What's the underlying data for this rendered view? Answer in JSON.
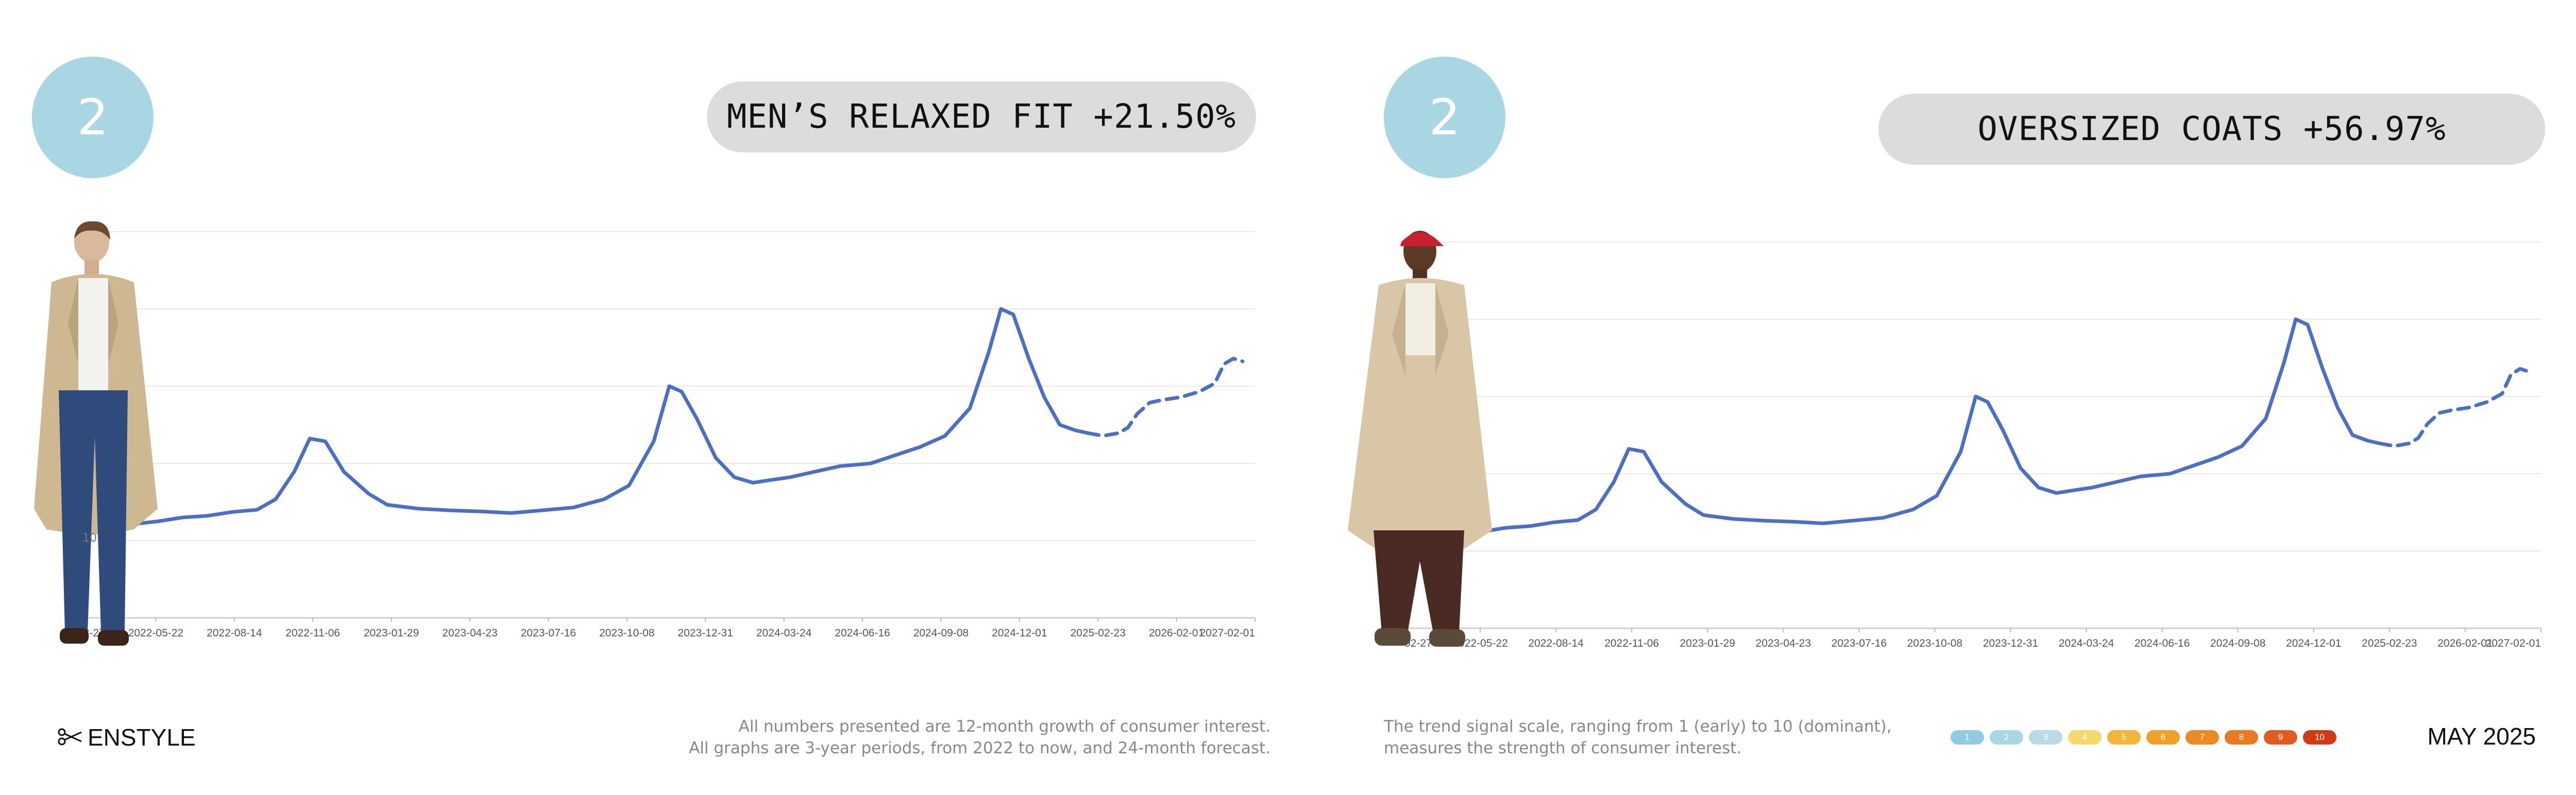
{
  "panels": [
    {
      "rank": "2",
      "title": "MEN’S RELAXED FIT +21.50%",
      "overlay_tick": "10"
    },
    {
      "rank": "2",
      "title": "OVERSIZED COATS +56.97%"
    }
  ],
  "footer": {
    "brand": "ENSTYLE",
    "brand_icon": "scissors-icon",
    "note_line1": "All numbers presented are 12-month growth of consumer interest.",
    "note_line2": "All graphs are 3-year periods, from 2022 to now, and 24-month forecast.",
    "scale_line1": "The trend signal scale, ranging from 1 (early) to 10 (dominant),",
    "scale_line2": "measures the strength of consumer interest.",
    "date": "MAY 2025"
  },
  "scale": [
    {
      "label": "1",
      "color": "#8fcbe3"
    },
    {
      "label": "2",
      "color": "#a9d6e3"
    },
    {
      "label": "3",
      "color": "#b9dbe6"
    },
    {
      "label": "4",
      "color": "#f6d96b"
    },
    {
      "label": "5",
      "color": "#f3b53a"
    },
    {
      "label": "6",
      "color": "#f0a12a"
    },
    {
      "label": "7",
      "color": "#ec8a24"
    },
    {
      "label": "8",
      "color": "#ea7a22"
    },
    {
      "label": "9",
      "color": "#e35a1e"
    },
    {
      "label": "10",
      "color": "#d23a14"
    }
  ],
  "colors": {
    "line": "#4a6fc4",
    "badge": "#a9d6e3",
    "title_bg": "#dcdcdc",
    "grid": "#e8e8e8"
  },
  "chart_data": [
    {
      "type": "line",
      "title": "MEN’S RELAXED FIT +21.50%",
      "xlabel": "",
      "ylabel": "",
      "grid": true,
      "x_ticks": [
        "2022-02-27",
        "2022-05-22",
        "2022-08-14",
        "2022-11-06",
        "2023-01-29",
        "2023-04-23",
        "2023-07-16",
        "2023-10-08",
        "2023-12-31",
        "2024-03-24",
        "2024-06-16",
        "2024-09-08",
        "2024-12-01",
        "2025-02-23",
        "2026-02-01",
        "2027-02-01"
      ],
      "series": [
        {
          "style": "solid",
          "values": [
            [
              0,
              40
            ],
            [
              0.25,
              39
            ],
            [
              0.55,
              36.5
            ],
            [
              0.9,
              37
            ],
            [
              1.3,
              37.5
            ],
            [
              1.7,
              38.2
            ],
            [
              2.1,
              38.5
            ],
            [
              2.5,
              39.2
            ],
            [
              2.9,
              39.6
            ],
            [
              3.2,
              41.5
            ],
            [
              3.5,
              46.5
            ],
            [
              3.75,
              52.5
            ],
            [
              4.0,
              52
            ],
            [
              4.3,
              46.5
            ],
            [
              4.7,
              42.5
            ],
            [
              5.0,
              40.5
            ],
            [
              5.5,
              39.8
            ],
            [
              6.0,
              39.5
            ],
            [
              6.5,
              39.3
            ],
            [
              7.0,
              39
            ],
            [
              7.5,
              39.5
            ],
            [
              8.0,
              40
            ],
            [
              8.5,
              41.5
            ],
            [
              8.9,
              44
            ],
            [
              9.3,
              52
            ],
            [
              9.55,
              62
            ],
            [
              9.75,
              61
            ],
            [
              10.0,
              56
            ],
            [
              10.3,
              49
            ],
            [
              10.6,
              45.5
            ],
            [
              10.9,
              44.5
            ],
            [
              11.2,
              45
            ],
            [
              11.5,
              45.5
            ],
            [
              11.9,
              46.5
            ],
            [
              12.3,
              47.5
            ],
            [
              12.8,
              48
            ],
            [
              13.2,
              49.5
            ],
            [
              13.6,
              51
            ],
            [
              14.0,
              53
            ],
            [
              14.4,
              58
            ],
            [
              14.7,
              68
            ],
            [
              14.9,
              76
            ],
            [
              15.1,
              75
            ],
            [
              15.35,
              67
            ],
            [
              15.6,
              60
            ],
            [
              15.85,
              55
            ],
            [
              16.1,
              54
            ],
            [
              16.3,
              53.5
            ]
          ]
        },
        {
          "style": "dashed",
          "values": [
            [
              16.3,
              53.5
            ],
            [
              16.55,
              53
            ],
            [
              16.8,
              53.5
            ],
            [
              16.95,
              54.5
            ],
            [
              17.1,
              57
            ],
            [
              17.3,
              59
            ],
            [
              17.5,
              59.5
            ],
            [
              17.8,
              60
            ],
            [
              18.1,
              61
            ],
            [
              18.35,
              62.5
            ],
            [
              18.5,
              66
            ],
            [
              18.65,
              67
            ],
            [
              18.8,
              66.5
            ]
          ]
        }
      ],
      "xlim": [
        0,
        19
      ],
      "ylim": [
        20,
        90
      ]
    },
    {
      "type": "line",
      "title": "OVERSIZED COATS +56.97%",
      "xlabel": "",
      "ylabel": "",
      "grid": true,
      "x_ticks": [
        "2022-02-27",
        "2022-05-22",
        "2022-08-14",
        "2022-11-06",
        "2023-01-29",
        "2023-04-23",
        "2023-07-16",
        "2023-10-08",
        "2023-12-31",
        "2024-03-24",
        "2024-06-16",
        "2024-09-08",
        "2024-12-01",
        "2025-02-23",
        "2026-02-01",
        "2027-02-01"
      ],
      "series": [
        {
          "style": "solid",
          "values": [
            [
              0,
              40
            ],
            [
              0.25,
              39
            ],
            [
              0.55,
              36.5
            ],
            [
              0.9,
              37
            ],
            [
              1.3,
              37.5
            ],
            [
              1.7,
              38.2
            ],
            [
              2.1,
              38.5
            ],
            [
              2.5,
              39.2
            ],
            [
              2.9,
              39.6
            ],
            [
              3.2,
              41.5
            ],
            [
              3.5,
              46.5
            ],
            [
              3.75,
              52.5
            ],
            [
              4.0,
              52
            ],
            [
              4.3,
              46.5
            ],
            [
              4.7,
              42.5
            ],
            [
              5.0,
              40.5
            ],
            [
              5.5,
              39.8
            ],
            [
              6.0,
              39.5
            ],
            [
              6.5,
              39.3
            ],
            [
              7.0,
              39
            ],
            [
              7.5,
              39.5
            ],
            [
              8.0,
              40
            ],
            [
              8.5,
              41.5
            ],
            [
              8.9,
              44
            ],
            [
              9.3,
              52
            ],
            [
              9.55,
              62
            ],
            [
              9.75,
              61
            ],
            [
              10.0,
              56
            ],
            [
              10.3,
              49
            ],
            [
              10.6,
              45.5
            ],
            [
              10.9,
              44.5
            ],
            [
              11.2,
              45
            ],
            [
              11.5,
              45.5
            ],
            [
              11.9,
              46.5
            ],
            [
              12.3,
              47.5
            ],
            [
              12.8,
              48
            ],
            [
              13.2,
              49.5
            ],
            [
              13.6,
              51
            ],
            [
              14.0,
              53
            ],
            [
              14.4,
              58
            ],
            [
              14.7,
              68
            ],
            [
              14.9,
              76
            ],
            [
              15.1,
              75
            ],
            [
              15.35,
              67
            ],
            [
              15.6,
              60
            ],
            [
              15.85,
              55
            ],
            [
              16.1,
              54
            ],
            [
              16.3,
              53.5
            ]
          ]
        },
        {
          "style": "dashed",
          "values": [
            [
              16.3,
              53.5
            ],
            [
              16.55,
              53
            ],
            [
              16.8,
              53.5
            ],
            [
              16.95,
              54.5
            ],
            [
              17.1,
              57
            ],
            [
              17.3,
              59
            ],
            [
              17.5,
              59.5
            ],
            [
              17.8,
              60
            ],
            [
              18.1,
              61
            ],
            [
              18.35,
              62.5
            ],
            [
              18.5,
              66
            ],
            [
              18.65,
              67
            ],
            [
              18.8,
              66.5
            ]
          ]
        }
      ],
      "xlim": [
        0,
        19
      ],
      "ylim": [
        20,
        90
      ]
    }
  ]
}
